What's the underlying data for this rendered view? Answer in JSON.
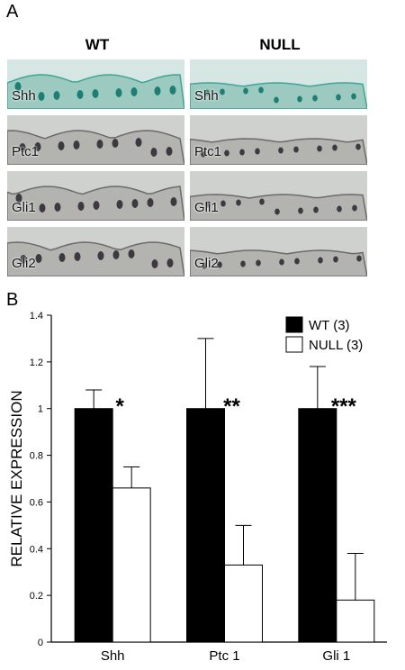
{
  "panel_a": {
    "letter": "A",
    "columns": [
      "WT",
      "NULL"
    ],
    "tiles": [
      {
        "row": 0,
        "col": 0,
        "label": "Shh",
        "stain": "teal"
      },
      {
        "row": 0,
        "col": 1,
        "label": "Shh",
        "stain": "teal"
      },
      {
        "row": 1,
        "col": 0,
        "label": "Ptc1",
        "stain": "dark"
      },
      {
        "row": 1,
        "col": 1,
        "label": "Ptc1",
        "stain": "dark"
      },
      {
        "row": 2,
        "col": 0,
        "label": "Gli1",
        "stain": "dark"
      },
      {
        "row": 2,
        "col": 1,
        "label": "Gli1",
        "stain": "dark"
      },
      {
        "row": 3,
        "col": 0,
        "label": "Gli2",
        "stain": "dark"
      },
      {
        "row": 3,
        "col": 1,
        "label": "Gli2",
        "stain": "dark"
      }
    ]
  },
  "panel_b": {
    "letter": "B"
  },
  "chart_data": {
    "type": "bar",
    "categories": [
      "Shh",
      "Ptc 1",
      "Gli 1"
    ],
    "series": [
      {
        "name": "WT (3)",
        "values": [
          1.0,
          1.0,
          1.0
        ],
        "errors": [
          0.08,
          0.3,
          0.18
        ],
        "color": "#000000"
      },
      {
        "name": "NULL (3)",
        "values": [
          0.66,
          0.33,
          0.18
        ],
        "errors": [
          0.09,
          0.17,
          0.2
        ],
        "color": "#ffffff"
      }
    ],
    "significance": [
      "*",
      "**",
      "***"
    ],
    "ylabel": "RELATIVE EXPRESSION",
    "ylim": [
      0,
      1.4
    ],
    "yticks": [
      "0",
      "0.2",
      "0.4",
      "0.6",
      "0.8",
      "1",
      "1.2",
      "1.4"
    ],
    "legend_position": "top-right"
  }
}
